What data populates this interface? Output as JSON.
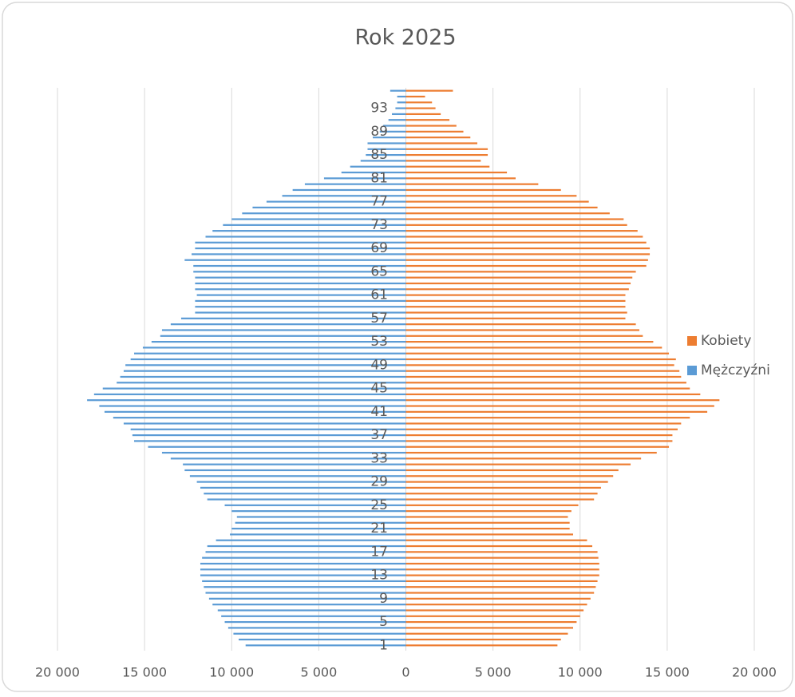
{
  "chart_data": {
    "type": "bar",
    "orientation": "horizontal",
    "stacked": true,
    "title": "Rok 2025",
    "categories": [
      "1",
      null,
      null,
      null,
      "5",
      null,
      null,
      null,
      "9",
      null,
      null,
      null,
      "13",
      null,
      null,
      null,
      "17",
      null,
      null,
      null,
      "21",
      null,
      null,
      null,
      "25",
      null,
      null,
      null,
      "29",
      null,
      null,
      null,
      "33",
      null,
      null,
      null,
      "37",
      null,
      null,
      null,
      "41",
      null,
      null,
      null,
      "45",
      null,
      null,
      null,
      "49",
      null,
      null,
      null,
      "53",
      null,
      null,
      null,
      "57",
      null,
      null,
      null,
      "61",
      null,
      null,
      null,
      "65",
      null,
      null,
      null,
      "69",
      null,
      null,
      null,
      "73",
      null,
      null,
      null,
      "77",
      null,
      null,
      null,
      "81",
      null,
      null,
      null,
      "85",
      null,
      null,
      null,
      "89",
      null,
      null,
      null,
      "93",
      null,
      null,
      null
    ],
    "series": [
      {
        "name": "Kobiety",
        "color": "#ed7d31",
        "values": [
          8700,
          8900,
          9300,
          9600,
          9800,
          10000,
          10200,
          10400,
          10600,
          10800,
          10900,
          11000,
          11100,
          11100,
          11100,
          11050,
          11000,
          10700,
          10400,
          9600,
          9400,
          9400,
          9300,
          9500,
          9900,
          10800,
          11000,
          11200,
          11600,
          11900,
          12200,
          12900,
          13500,
          14400,
          15100,
          15300,
          15300,
          15600,
          15800,
          16300,
          17300,
          17700,
          18000,
          16900,
          16300,
          16100,
          15800,
          15700,
          15400,
          15500,
          15100,
          14700,
          14200,
          13600,
          13400,
          13200,
          12600,
          12700,
          12600,
          12600,
          12600,
          12800,
          12900,
          13000,
          13200,
          13800,
          13900,
          14000,
          14000,
          13800,
          13600,
          13300,
          12700,
          12500,
          11700,
          11000,
          10500,
          9800,
          8900,
          7600,
          6300,
          5800,
          4800,
          4300,
          4700,
          4700,
          4100,
          3700,
          3300,
          2900,
          2500,
          2000,
          1700,
          1500,
          1100,
          2700
        ]
      },
      {
        "name": "Mężczyźni",
        "color": "#5b9bd5",
        "values": [
          -9200,
          -9600,
          -9900,
          -10200,
          -10400,
          -10600,
          -10800,
          -11100,
          -11300,
          -11500,
          -11600,
          -11700,
          -11800,
          -11800,
          -11800,
          -11700,
          -11500,
          -11400,
          -10900,
          -10100,
          -10000,
          -9800,
          -9700,
          -10000,
          -10400,
          -11400,
          -11600,
          -11800,
          -12000,
          -12400,
          -12700,
          -12800,
          -13500,
          -14000,
          -14800,
          -15600,
          -15700,
          -15800,
          -16200,
          -16800,
          -17300,
          -17600,
          -18300,
          -17900,
          -17400,
          -16600,
          -16400,
          -16200,
          -16100,
          -15800,
          -15600,
          -15100,
          -14600,
          -14100,
          -14000,
          -13500,
          -12900,
          -12100,
          -12100,
          -12100,
          -12000,
          -12100,
          -12100,
          -12100,
          -12200,
          -12200,
          -12700,
          -12300,
          -12100,
          -12100,
          -11500,
          -11100,
          -10500,
          -10000,
          -9400,
          -8800,
          -8000,
          -7100,
          -6500,
          -5800,
          -4700,
          -3700,
          -3200,
          -2600,
          -2300,
          -2200,
          -2200,
          -1900,
          -1500,
          -1300,
          -1000,
          -800,
          -600,
          -500,
          -500,
          -900
        ]
      }
    ],
    "xlim": [
      -20000,
      20000
    ],
    "xticks": [
      {
        "value": -20000,
        "label": "20 000"
      },
      {
        "value": -15000,
        "label": "15 000"
      },
      {
        "value": -10000,
        "label": "10 000"
      },
      {
        "value": -5000,
        "label": "5 000"
      },
      0,
      {
        "value": 5000,
        "label": "5 000"
      },
      {
        "value": 10000,
        "label": "10 000"
      },
      {
        "value": 15000,
        "label": "15 000"
      },
      {
        "value": 20000,
        "label": "20 000"
      }
    ],
    "grid": true,
    "legend": "right"
  }
}
